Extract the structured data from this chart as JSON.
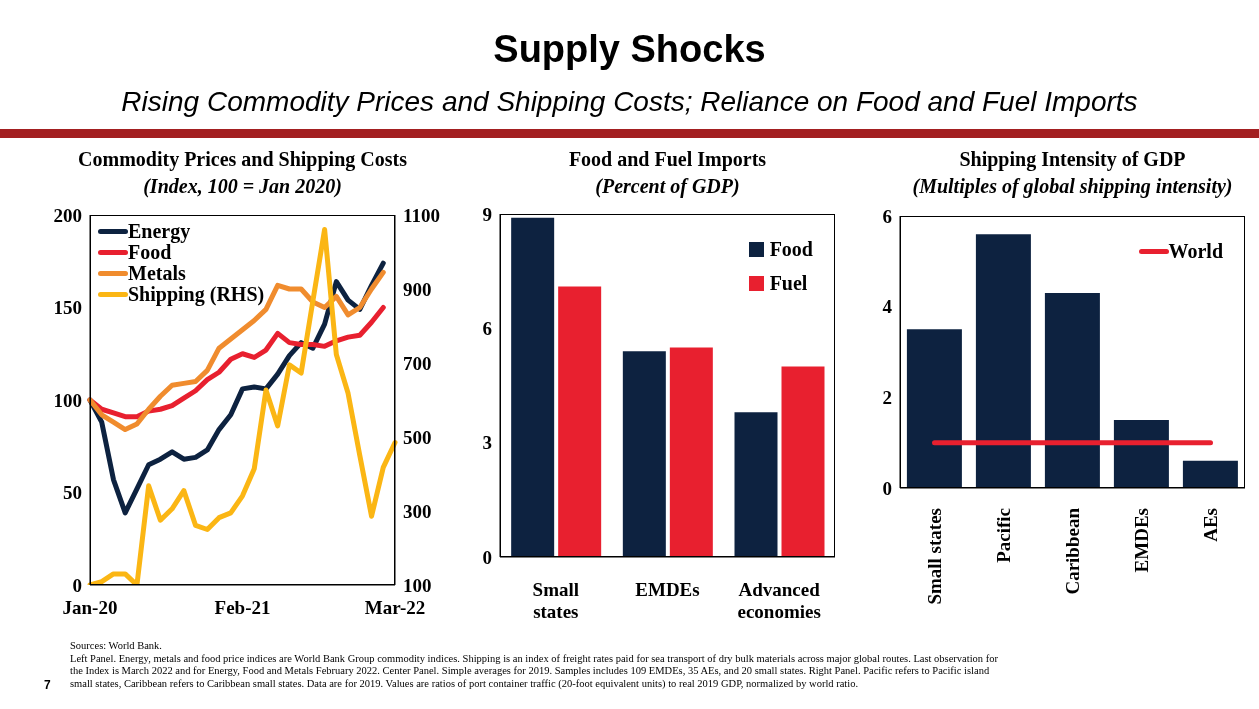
{
  "chart_data": [
    {
      "type": "line",
      "title": "Commodity Prices and Shipping Costs",
      "subtitle": "(Index, 100 = Jan 2020)",
      "categories": [
        "Jan-20",
        null,
        null,
        null,
        null,
        null,
        null,
        null,
        null,
        null,
        null,
        null,
        null,
        "Feb-21",
        null,
        null,
        null,
        null,
        null,
        null,
        null,
        null,
        null,
        null,
        null,
        null,
        "Mar-22"
      ],
      "ylim": [
        0,
        200
      ],
      "yticks": [
        0,
        50,
        100,
        150,
        200
      ],
      "y2lim": [
        100,
        1100
      ],
      "y2ticks": [
        100,
        300,
        500,
        700,
        900,
        1100
      ],
      "legend": "top left",
      "series": [
        {
          "name": "Energy",
          "color": "#0d2240",
          "values": [
            100,
            88,
            57,
            39,
            52,
            65,
            68,
            72,
            68,
            69,
            73,
            84,
            92,
            106,
            107,
            106,
            114,
            124,
            131,
            128,
            141,
            164,
            154,
            149,
            162,
            174,
            null
          ]
        },
        {
          "name": "Food",
          "color": "#e8202f",
          "values": [
            100,
            95,
            93,
            91,
            91,
            94,
            95,
            97,
            101,
            105,
            111,
            115,
            122,
            125,
            123,
            127,
            136,
            131,
            130,
            130,
            129,
            132,
            134,
            135,
            142,
            150,
            null
          ]
        },
        {
          "name": "Metals",
          "color": "#f08c2e",
          "values": [
            100,
            92,
            88,
            84,
            87,
            95,
            102,
            108,
            109,
            110,
            116,
            128,
            133,
            138,
            143,
            149,
            162,
            160,
            160,
            153,
            150,
            156,
            146,
            150,
            160,
            169,
            null
          ]
        },
        {
          "name": "Shipping (RHS)",
          "color": "#fbb614",
          "axis": "y2",
          "values": [
            100,
            109,
            130,
            130,
            100,
            368,
            275,
            306,
            355,
            261,
            250,
            282,
            295,
            341,
            414,
            627,
            530,
            695,
            673,
            868,
            1061,
            723,
            618,
            450,
            286,
            418,
            485
          ]
        }
      ],
      "annotations": [
        "Supply Shocks",
        "Rising Commodity Prices and Shipping Costs; Reliance on Food and Fuel Imports",
        "Sources: World Bank.",
        "Left Panel. Energy, metals and food price indices are World Bank Group commodity indices. Shipping is an index of freight rates paid for sea transport of dry bulk materials across major global routes. Last observation for the Index is March 2022 and for Energy, Food and Metals February 2022. Center Panel. Simple averages for 2019. Samples includes 109 EMDEs, 35 AEs, and 20 small states. Right Panel. Pacific refers to Pacific island small states, Caribbean refers to Caribbean small states. Data are for 2019. Values are ratios of port container traffic (20-foot equivalent units) to real 2019 GDP, normalized by world ratio.",
        "7"
      ]
    },
    {
      "type": "bar",
      "title": "Food and Fuel Imports",
      "subtitle": "(Percent of GDP)",
      "categories": [
        "Small states",
        "EMDEs",
        "Advanced economies"
      ],
      "ylim": [
        0,
        9
      ],
      "yticks": [
        0,
        3,
        6,
        9
      ],
      "legend": "top right",
      "series": [
        {
          "name": "Food",
          "color": "#0d2240",
          "values": [
            8.9,
            5.4,
            3.8
          ]
        },
        {
          "name": "Fuel",
          "color": "#e8202f",
          "values": [
            7.1,
            5.5,
            5.0
          ]
        }
      ]
    },
    {
      "type": "bar",
      "title": "Shipping Intensity of GDP",
      "subtitle": "(Multiples of global shipping intensity)",
      "categories": [
        "Small states",
        "Pacific",
        "Caribbean",
        "EMDEs",
        "AEs"
      ],
      "ylim": [
        0,
        6
      ],
      "yticks": [
        0,
        2,
        4,
        6
      ],
      "legend": "top right",
      "series": [
        {
          "color": "#0d2240",
          "values": [
            3.5,
            5.6,
            4.3,
            1.5,
            0.6
          ]
        },
        {
          "name": "World",
          "type": "line",
          "color": "#e8202f",
          "values": [
            1,
            1,
            1,
            1,
            1
          ]
        }
      ]
    }
  ]
}
